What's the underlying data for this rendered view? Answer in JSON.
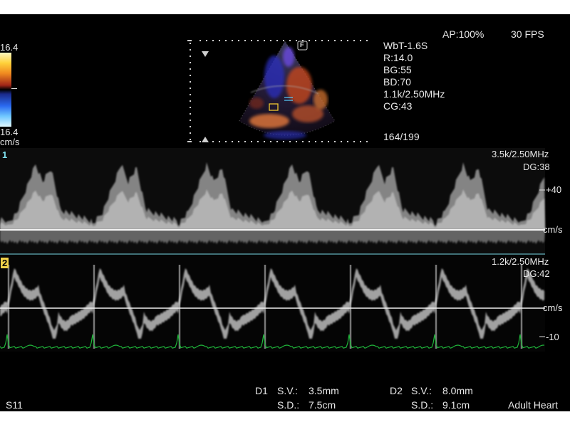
{
  "header": {
    "ap": "AP:100%",
    "fps": "30 FPS"
  },
  "colorbar": {
    "top_value": "16.4",
    "bottom_value": "16.4",
    "unit": "cm/s"
  },
  "params": [
    "WbT-1.6S",
    "R:14.0",
    "BG:55",
    "BD:70",
    "1.1k/2.50MHz",
    "CG:43"
  ],
  "frame_counter": "164/199",
  "image_marker": "F",
  "doppler1": {
    "num": "1",
    "prf": "3.5k/2.50MHz",
    "gain": "DG:38",
    "scale_mark": "+40",
    "unit": "cm/s"
  },
  "doppler2": {
    "num": "2",
    "prf": "1.2k/2.50MHz",
    "gain": "DG:42",
    "unit": "cm/s",
    "scale_mark": "-10"
  },
  "measurements": {
    "d1": {
      "label": "D1",
      "sv_label": "S.V.:",
      "sv": "3.5mm",
      "sd_label": "S.D.:",
      "sd": "7.5cm"
    },
    "d2": {
      "label": "D2",
      "sv_label": "S.V.:",
      "sv": "8.0mm",
      "sd_label": "S.D.:",
      "sd": "9.1cm"
    }
  },
  "footer": {
    "preset_code": "S11",
    "application": "Adult Heart"
  },
  "colors": {
    "ecg": "#1fb53a",
    "baseline_line": "#7fe0ee",
    "panel2_badge": "#f0d24a"
  }
}
